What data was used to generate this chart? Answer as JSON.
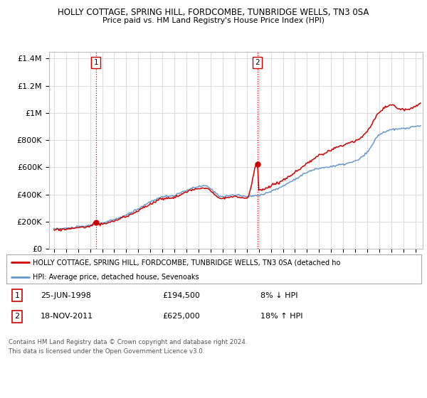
{
  "title1": "HOLLY COTTAGE, SPRING HILL, FORDCOMBE, TUNBRIDGE WELLS, TN3 0SA",
  "title2": "Price paid vs. HM Land Registry's House Price Index (HPI)",
  "ylabel_ticks": [
    "£0",
    "£200K",
    "£400K",
    "£600K",
    "£800K",
    "£1M",
    "£1.2M",
    "£1.4M"
  ],
  "ytick_values": [
    0,
    200000,
    400000,
    600000,
    800000,
    1000000,
    1200000,
    1400000
  ],
  "ylim": [
    0,
    1450000
  ],
  "xlim_start": 1994.6,
  "xlim_end": 2025.6,
  "line_color_red": "#cc0000",
  "line_color_blue": "#6699cc",
  "marker1_x": 1998.48,
  "marker1_y": 194500,
  "marker1_label": "1",
  "marker2_x": 2011.88,
  "marker2_y": 625000,
  "marker2_label": "2",
  "legend_label_red": "HOLLY COTTAGE, SPRING HILL, FORDCOMBE, TUNBRIDGE WELLS, TN3 0SA (detached ho",
  "legend_label_blue": "HPI: Average price, detached house, Sevenoaks",
  "table_row1": [
    "1",
    "25-JUN-1998",
    "£194,500",
    "8% ↓ HPI"
  ],
  "table_row2": [
    "2",
    "18-NOV-2011",
    "£625,000",
    "18% ↑ HPI"
  ],
  "footer": "Contains HM Land Registry data © Crown copyright and database right 2024.\nThis data is licensed under the Open Government Licence v3.0.",
  "bg_color": "#ffffff",
  "grid_color": "#dddddd",
  "vline_color": "#cc0000",
  "vline_style": ":"
}
